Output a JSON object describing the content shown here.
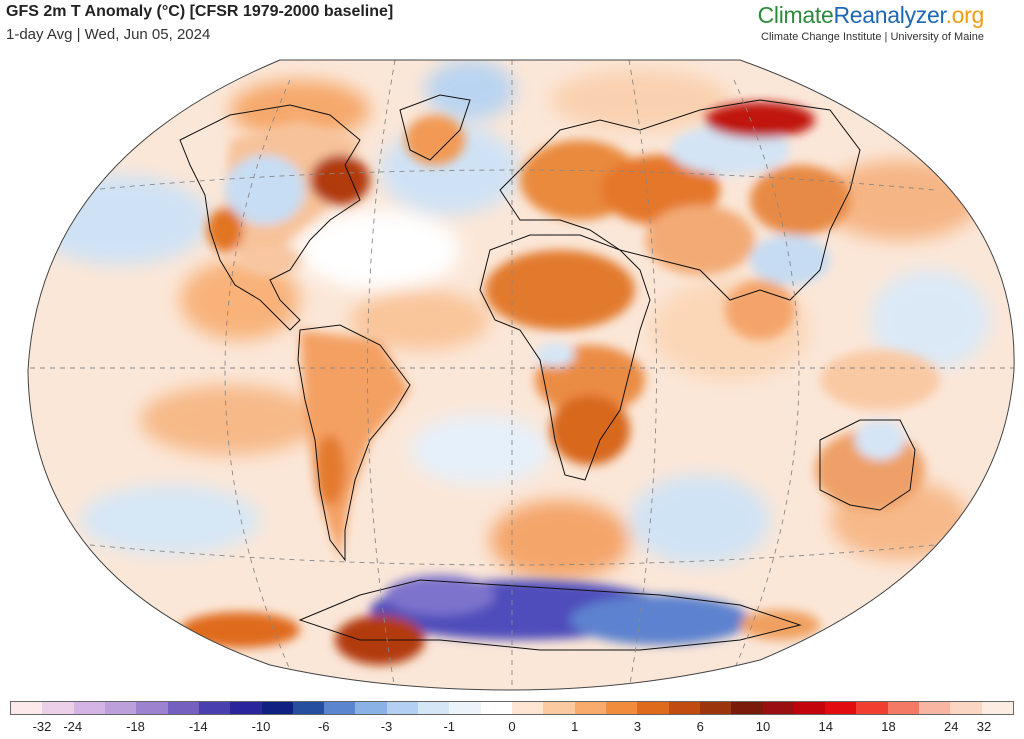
{
  "header": {
    "title": "GFS 2m T Anomaly (°C) [CFSR 1979-2000 baseline]",
    "subtitle": "1-day Avg | Wed, Jun 05, 2024",
    "brand_part1": "Climate",
    "brand_part2": "Reanalyzer",
    "brand_part3": ".org",
    "brand_sub": "Climate Change Institute | University of Maine"
  },
  "colorbar": {
    "colors": [
      "#fde8ec",
      "#ecd0ea",
      "#d4b4e4",
      "#bca0dc",
      "#9c82cf",
      "#7560c0",
      "#4a3fae",
      "#2a259a",
      "#101f82",
      "#264fa0",
      "#5c85cf",
      "#8bb2e6",
      "#b3d0f2",
      "#d5e6f7",
      "#ecf4fb",
      "#ffffff",
      "#fde6d2",
      "#fbcaa0",
      "#f8ab6d",
      "#f08c3c",
      "#e06a1c",
      "#c24c10",
      "#9c340c",
      "#7a1a0a",
      "#9a0f10",
      "#c4040c",
      "#e20c10",
      "#f23e30",
      "#f57a66",
      "#f9b4a2",
      "#fbd6c2",
      "#fdece2"
    ],
    "tick_labels": [
      "-32",
      "-24",
      "-18",
      "-14",
      "-10",
      "-6",
      "-3",
      "-1",
      "0",
      "1",
      "3",
      "6",
      "10",
      "14",
      "18",
      "24",
      "32"
    ]
  }
}
